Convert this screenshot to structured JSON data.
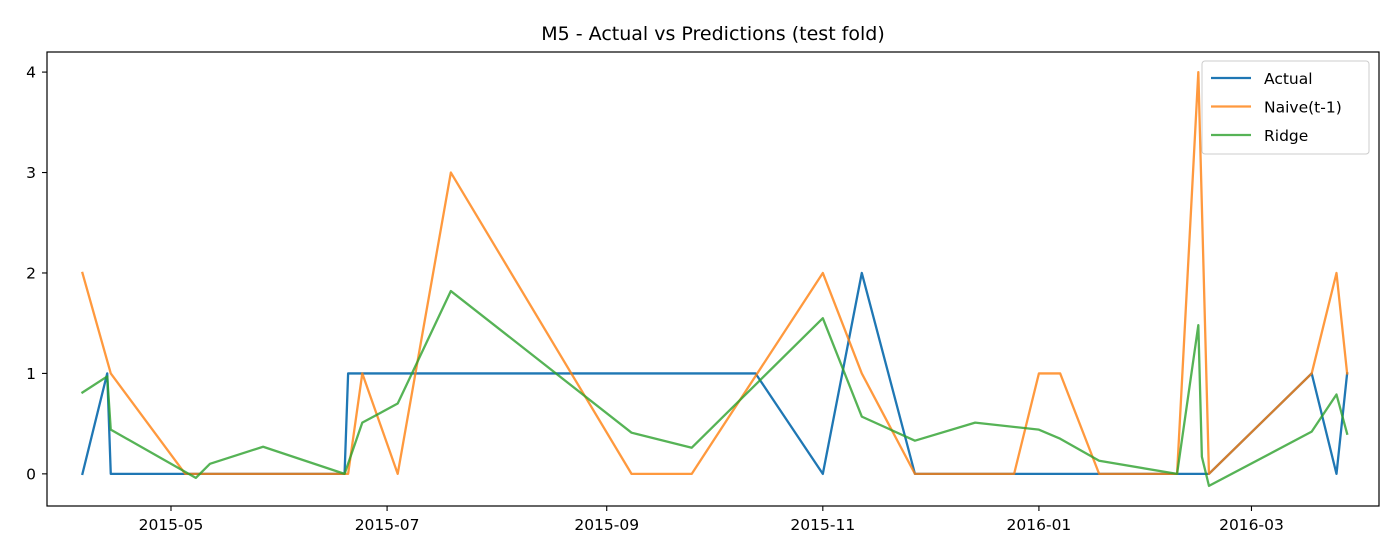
{
  "chart_data": {
    "type": "line",
    "title": "M5 - Actual vs Predictions (test fold)",
    "xlabel": "",
    "ylabel": "",
    "x_axis_type": "date",
    "xlim": [
      "2015-03-27",
      "2016-04-06"
    ],
    "ylim": [
      -0.32,
      4.2
    ],
    "x_ticks": [
      "2015-05-01",
      "2015-07-01",
      "2015-09-01",
      "2015-11-01",
      "2016-01-01",
      "2016-03-01"
    ],
    "x_tick_labels": [
      "2015-05",
      "2015-07",
      "2015-09",
      "2015-11",
      "2016-01",
      "2016-03"
    ],
    "y_ticks": [
      0,
      1,
      2,
      3,
      4
    ],
    "y_tick_labels": [
      "0",
      "1",
      "2",
      "3",
      "4"
    ],
    "grid": false,
    "legend_position": "top-right",
    "series": [
      {
        "name": "Actual",
        "color": "#1f77b4",
        "points": [
          {
            "x": "2015-04-06",
            "y": 0
          },
          {
            "x": "2015-04-13",
            "y": 1
          },
          {
            "x": "2015-04-14",
            "y": 0
          },
          {
            "x": "2015-06-19",
            "y": 0
          },
          {
            "x": "2015-06-20",
            "y": 1
          },
          {
            "x": "2015-10-13",
            "y": 1
          },
          {
            "x": "2015-11-01",
            "y": 0
          },
          {
            "x": "2015-11-12",
            "y": 2
          },
          {
            "x": "2015-11-27",
            "y": 0
          },
          {
            "x": "2016-02-18",
            "y": 0
          },
          {
            "x": "2016-03-18",
            "y": 1
          },
          {
            "x": "2016-03-25",
            "y": 0
          },
          {
            "x": "2016-03-28",
            "y": 1
          }
        ]
      },
      {
        "name": "Naive(t-1)",
        "color": "#ff7f0e",
        "points": [
          {
            "x": "2015-04-06",
            "y": 2
          },
          {
            "x": "2015-04-14",
            "y": 1
          },
          {
            "x": "2015-05-05",
            "y": 0
          },
          {
            "x": "2015-06-20",
            "y": 0
          },
          {
            "x": "2015-06-24",
            "y": 1
          },
          {
            "x": "2015-07-04",
            "y": 0
          },
          {
            "x": "2015-07-19",
            "y": 3
          },
          {
            "x": "2015-09-08",
            "y": 0
          },
          {
            "x": "2015-09-25",
            "y": 0
          },
          {
            "x": "2015-11-01",
            "y": 2
          },
          {
            "x": "2015-11-12",
            "y": 1
          },
          {
            "x": "2015-11-27",
            "y": 0
          },
          {
            "x": "2015-12-25",
            "y": 0
          },
          {
            "x": "2016-01-01",
            "y": 1
          },
          {
            "x": "2016-01-07",
            "y": 1
          },
          {
            "x": "2016-01-18",
            "y": 0
          },
          {
            "x": "2016-02-09",
            "y": 0
          },
          {
            "x": "2016-02-15",
            "y": 4
          },
          {
            "x": "2016-02-18",
            "y": 0
          },
          {
            "x": "2016-03-18",
            "y": 1
          },
          {
            "x": "2016-03-25",
            "y": 2
          },
          {
            "x": "2016-03-28",
            "y": 1
          }
        ]
      },
      {
        "name": "Ridge",
        "color": "#2ca02c",
        "points": [
          {
            "x": "2015-04-06",
            "y": 0.81
          },
          {
            "x": "2015-04-13",
            "y": 0.97
          },
          {
            "x": "2015-04-14",
            "y": 0.44
          },
          {
            "x": "2015-05-08",
            "y": -0.04
          },
          {
            "x": "2015-05-12",
            "y": 0.1
          },
          {
            "x": "2015-05-27",
            "y": 0.27
          },
          {
            "x": "2015-06-19",
            "y": 0.0
          },
          {
            "x": "2015-06-24",
            "y": 0.51
          },
          {
            "x": "2015-07-04",
            "y": 0.7
          },
          {
            "x": "2015-07-19",
            "y": 1.82
          },
          {
            "x": "2015-09-08",
            "y": 0.41
          },
          {
            "x": "2015-09-25",
            "y": 0.26
          },
          {
            "x": "2015-11-01",
            "y": 1.55
          },
          {
            "x": "2015-11-12",
            "y": 0.57
          },
          {
            "x": "2015-11-27",
            "y": 0.33
          },
          {
            "x": "2015-12-14",
            "y": 0.51
          },
          {
            "x": "2016-01-01",
            "y": 0.44
          },
          {
            "x": "2016-01-07",
            "y": 0.35
          },
          {
            "x": "2016-01-18",
            "y": 0.13
          },
          {
            "x": "2016-02-09",
            "y": 0.0
          },
          {
            "x": "2016-02-15",
            "y": 1.48
          },
          {
            "x": "2016-02-16",
            "y": 0.17
          },
          {
            "x": "2016-02-18",
            "y": -0.12
          },
          {
            "x": "2016-03-18",
            "y": 0.42
          },
          {
            "x": "2016-03-25",
            "y": 0.79
          },
          {
            "x": "2016-03-28",
            "y": 0.4
          }
        ]
      }
    ]
  }
}
